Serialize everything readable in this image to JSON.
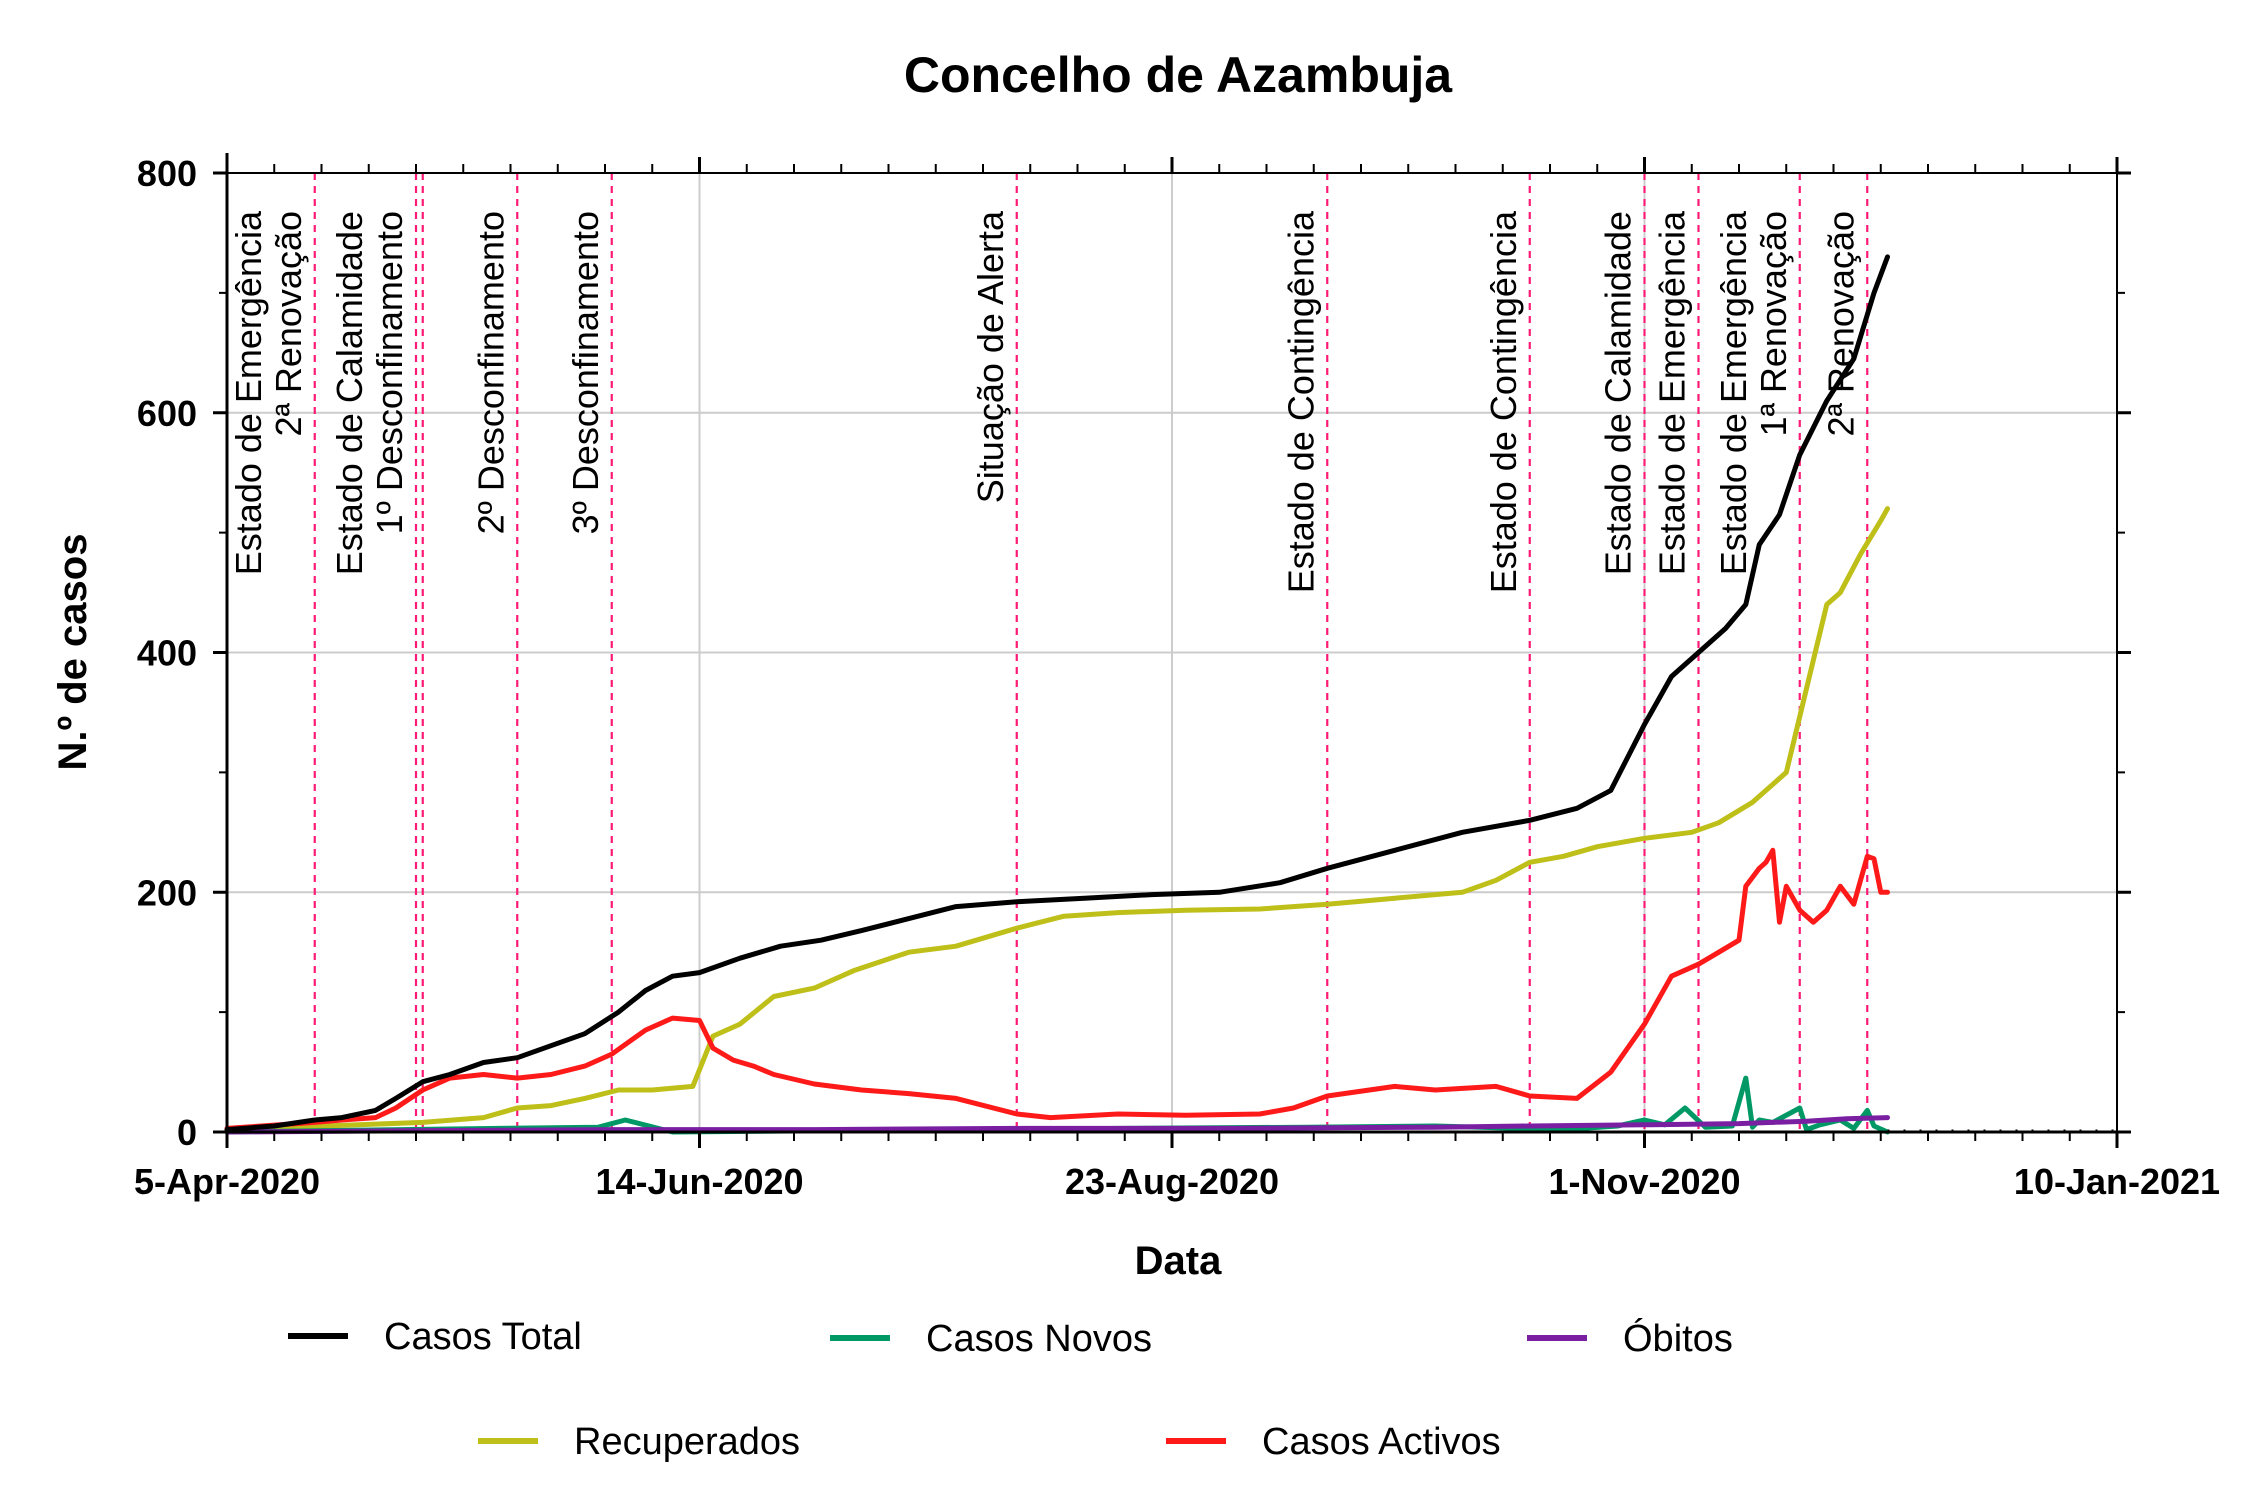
{
  "chart_data": {
    "type": "line",
    "title": "Concelho de Azambuja",
    "xlabel": "Data",
    "ylabel": "N.º de casos",
    "x_axis": {
      "type": "date",
      "range": [
        "2020-04-05",
        "2021-01-10"
      ],
      "tick_dates": [
        "2020-04-05",
        "2020-06-14",
        "2020-08-23",
        "2020-11-01",
        "2021-01-10"
      ],
      "tick_labels": [
        "5-Apr-2020",
        "14-Jun-2020",
        "23-Aug-2020",
        "1-Nov-2020",
        "10-Jan-2021"
      ]
    },
    "y_axis": {
      "range": [
        0,
        800
      ],
      "ticks": [
        0,
        200,
        400,
        600,
        800
      ]
    },
    "grid": true,
    "legend_position": "bottom",
    "events": [
      {
        "date": "2020-04-18",
        "label": "Estado de Emergência\n2ª Renovação"
      },
      {
        "date": "2020-05-03",
        "label": "Estado de Calamidade\n1º Desconfinamento"
      },
      {
        "date": "2020-05-04",
        "label": ""
      },
      {
        "date": "2020-05-18",
        "label": "2º Desconfinamento"
      },
      {
        "date": "2020-06-01",
        "label": "3º Desconfinamento"
      },
      {
        "date": "2020-07-31",
        "label": "Situação de Alerta"
      },
      {
        "date": "2020-09-15",
        "label": "Estado de Contingência"
      },
      {
        "date": "2020-10-15",
        "label": "Estado de Contingência"
      },
      {
        "date": "2020-11-01",
        "label": "Estado de Calamidade"
      },
      {
        "date": "2020-11-09",
        "label": "Estado de Emergência"
      },
      {
        "date": "2020-11-24",
        "label": "Estado de Emergência\n1ª Renovação"
      },
      {
        "date": "2020-12-04",
        "label": "2ª Renovação"
      }
    ],
    "series": [
      {
        "name": "Casos Total",
        "color": "#000000",
        "x": [
          "2020-04-05",
          "2020-04-12",
          "2020-04-18",
          "2020-04-22",
          "2020-04-27",
          "2020-04-30",
          "2020-05-04",
          "2020-05-08",
          "2020-05-13",
          "2020-05-18",
          "2020-05-23",
          "2020-05-28",
          "2020-06-02",
          "2020-06-06",
          "2020-06-10",
          "2020-06-14",
          "2020-06-20",
          "2020-06-26",
          "2020-07-02",
          "2020-07-08",
          "2020-07-15",
          "2020-07-22",
          "2020-07-31",
          "2020-08-10",
          "2020-08-20",
          "2020-08-30",
          "2020-09-08",
          "2020-09-15",
          "2020-09-25",
          "2020-10-05",
          "2020-10-15",
          "2020-10-22",
          "2020-10-27",
          "2020-11-01",
          "2020-11-05",
          "2020-11-09",
          "2020-11-13",
          "2020-11-16",
          "2020-11-18",
          "2020-11-21",
          "2020-11-24",
          "2020-11-28",
          "2020-12-02",
          "2020-12-05",
          "2020-12-07"
        ],
        "y": [
          2,
          5,
          10,
          12,
          18,
          28,
          42,
          48,
          58,
          62,
          72,
          82,
          100,
          118,
          130,
          133,
          145,
          155,
          160,
          168,
          178,
          188,
          192,
          195,
          198,
          200,
          208,
          220,
          235,
          250,
          260,
          270,
          285,
          340,
          380,
          400,
          420,
          440,
          490,
          515,
          565,
          610,
          645,
          700,
          730
        ]
      },
      {
        "name": "Casos Novos",
        "color": "#009966",
        "x": [
          "2020-04-05",
          "2020-05-01",
          "2020-05-30",
          "2020-06-03",
          "2020-06-10",
          "2020-07-20",
          "2020-09-12",
          "2020-10-01",
          "2020-10-20",
          "2020-10-28",
          "2020-11-01",
          "2020-11-04",
          "2020-11-07",
          "2020-11-10",
          "2020-11-14",
          "2020-11-16",
          "2020-11-17",
          "2020-11-18",
          "2020-11-20",
          "2020-11-24",
          "2020-11-25",
          "2020-11-27",
          "2020-11-30",
          "2020-12-02",
          "2020-12-04",
          "2020-12-05",
          "2020-12-07"
        ],
        "y": [
          0,
          2,
          4,
          10,
          0,
          2,
          4,
          5,
          2,
          5,
          10,
          6,
          20,
          4,
          5,
          45,
          4,
          10,
          8,
          20,
          2,
          6,
          10,
          3,
          18,
          5,
          0
        ]
      },
      {
        "name": "Óbitos",
        "color": "#7a1fa2",
        "x": [
          "2020-04-05",
          "2020-05-01",
          "2020-06-01",
          "2020-07-01",
          "2020-08-01",
          "2020-09-01",
          "2020-10-01",
          "2020-10-15",
          "2020-11-01",
          "2020-11-15",
          "2020-11-25",
          "2020-12-01",
          "2020-12-07"
        ],
        "y": [
          0,
          1,
          2,
          2,
          3,
          3,
          4,
          5,
          6,
          7,
          9,
          11,
          12
        ]
      },
      {
        "name": "Recuperados",
        "color": "#bfbf1a",
        "x": [
          "2020-04-05",
          "2020-05-04",
          "2020-05-13",
          "2020-05-18",
          "2020-05-23",
          "2020-05-28",
          "2020-06-02",
          "2020-06-07",
          "2020-06-13",
          "2020-06-16",
          "2020-06-20",
          "2020-06-25",
          "2020-07-01",
          "2020-07-07",
          "2020-07-15",
          "2020-07-22",
          "2020-07-31",
          "2020-08-07",
          "2020-08-15",
          "2020-08-25",
          "2020-09-05",
          "2020-09-15",
          "2020-09-25",
          "2020-10-05",
          "2020-10-10",
          "2020-10-15",
          "2020-10-20",
          "2020-10-25",
          "2020-11-01",
          "2020-11-08",
          "2020-11-12",
          "2020-11-17",
          "2020-11-20",
          "2020-11-22",
          "2020-11-25",
          "2020-11-28",
          "2020-11-30",
          "2020-12-03",
          "2020-12-06",
          "2020-12-07"
        ],
        "y": [
          2,
          8,
          12,
          20,
          22,
          28,
          35,
          35,
          38,
          80,
          90,
          113,
          120,
          135,
          150,
          155,
          170,
          180,
          183,
          185,
          186,
          190,
          195,
          200,
          210,
          225,
          230,
          238,
          245,
          250,
          258,
          275,
          290,
          300,
          370,
          440,
          450,
          482,
          510,
          520
        ]
      },
      {
        "name": "Casos Activos",
        "color": "#ff1a1a",
        "x": [
          "2020-04-05",
          "2020-04-18",
          "2020-04-22",
          "2020-04-27",
          "2020-04-30",
          "2020-05-04",
          "2020-05-08",
          "2020-05-13",
          "2020-05-18",
          "2020-05-23",
          "2020-05-28",
          "2020-06-01",
          "2020-06-06",
          "2020-06-10",
          "2020-06-14",
          "2020-06-16",
          "2020-06-19",
          "2020-06-22",
          "2020-06-25",
          "2020-07-01",
          "2020-07-08",
          "2020-07-15",
          "2020-07-22",
          "2020-07-31",
          "2020-08-05",
          "2020-08-15",
          "2020-08-25",
          "2020-09-05",
          "2020-09-10",
          "2020-09-15",
          "2020-09-25",
          "2020-10-01",
          "2020-10-10",
          "2020-10-15",
          "2020-10-22",
          "2020-10-27",
          "2020-11-01",
          "2020-11-05",
          "2020-11-09",
          "2020-11-12",
          "2020-11-15",
          "2020-11-16",
          "2020-11-18",
          "2020-11-19",
          "2020-11-20",
          "2020-11-21",
          "2020-11-22",
          "2020-11-24",
          "2020-11-26",
          "2020-11-28",
          "2020-11-30",
          "2020-12-02",
          "2020-12-04",
          "2020-12-05",
          "2020-12-06",
          "2020-12-07"
        ],
        "y": [
          3,
          8,
          10,
          12,
          20,
          35,
          45,
          48,
          45,
          48,
          55,
          65,
          85,
          95,
          93,
          70,
          60,
          55,
          48,
          40,
          35,
          32,
          28,
          15,
          12,
          15,
          14,
          15,
          20,
          30,
          38,
          35,
          38,
          30,
          28,
          50,
          90,
          130,
          140,
          150,
          160,
          205,
          220,
          225,
          235,
          175,
          205,
          185,
          175,
          185,
          205,
          190,
          230,
          228,
          200,
          200
        ]
      }
    ]
  }
}
